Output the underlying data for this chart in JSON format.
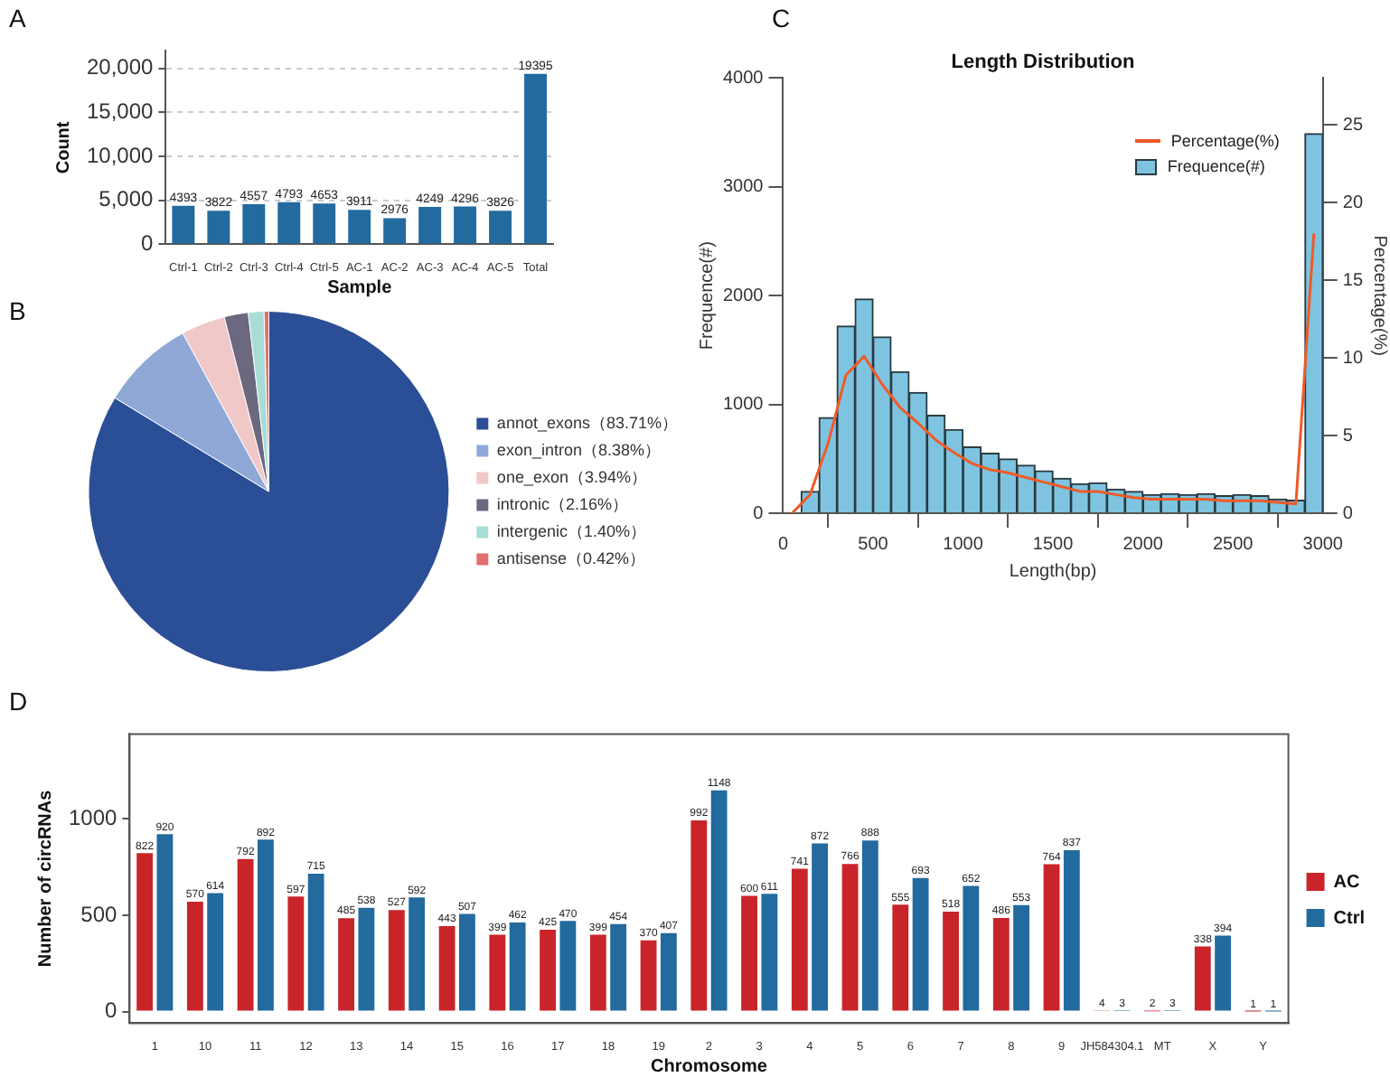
{
  "chart_data": [
    {
      "type": "bar",
      "xlabel": "Sample",
      "ylabel": "Count",
      "annotations": [
        "A"
      ],
      "categories": [
        "Ctrl-1",
        "Ctrl-2",
        "Ctrl-3",
        "Ctrl-4",
        "Ctrl-5",
        "AC-1",
        "AC-2",
        "AC-3",
        "AC-4",
        "AC-5",
        "Total"
      ],
      "values": [
        4393,
        3822,
        4557,
        4793,
        4653,
        3911,
        2976,
        4249,
        4296,
        3826,
        19395
      ],
      "color": "#236a9e",
      "ylim": [
        0,
        22000
      ],
      "yticks": [
        0,
        {
          "value": 5000,
          "label": "5,000"
        },
        {
          "value": 10000,
          "label": "10,000"
        },
        {
          "value": 15000,
          "label": "15,000"
        },
        {
          "value": 20000,
          "label": "20,000"
        }
      ],
      "grid": "y",
      "data_labels": true
    },
    {
      "type": "pie",
      "annotations": [
        "B"
      ],
      "categories": [
        "annot_exons（83.71%）",
        "exon_intron（8.38%）",
        "one_exon（3.94%）",
        "intronic（2.16%）",
        "intergenic（1.40%）",
        "antisense（0.42%）"
      ],
      "values": [
        83.71,
        8.38,
        3.94,
        2.16,
        1.4,
        0.42
      ],
      "colors": [
        "#2b4f96",
        "#8fa8d6",
        "#f0c8c8",
        "#6b6880",
        "#a8dcd6",
        "#e07070"
      ],
      "legend": "right"
    },
    {
      "type": "histogram",
      "title": "Length Distribution",
      "xlabel": "Length(bp)",
      "ylabel": "Frequence(#)",
      "y2label": "Percentage(%)",
      "annotations": [
        "C"
      ],
      "series": [
        {
          "type": "line",
          "name": "Percentage(%)",
          "color": "#f05a28",
          "axis": "y2",
          "x": [
            50,
            150,
            250,
            350,
            450,
            550,
            650,
            750,
            850,
            950,
            1050,
            1150,
            1250,
            1350,
            1450,
            1550,
            1650,
            1750,
            1850,
            1950,
            2050,
            2150,
            2250,
            2350,
            2450,
            2550,
            2650,
            2750,
            2850,
            2950
          ],
          "values": [
            0,
            1.2,
            4.5,
            8.9,
            10.1,
            8.3,
            6.8,
            5.8,
            4.7,
            3.9,
            3.2,
            2.8,
            2.6,
            2.3,
            2.0,
            1.7,
            1.4,
            1.4,
            1.2,
            1.0,
            0.9,
            0.9,
            0.9,
            0.9,
            0.8,
            0.8,
            0.8,
            0.7,
            0.6,
            18
          ]
        },
        {
          "type": "histogram",
          "name": "Frequence(#)",
          "color": "#7ec4e0",
          "bins": [
            0,
            100,
            200,
            300,
            400,
            500,
            600,
            700,
            800,
            900,
            1000,
            1100,
            1200,
            1300,
            1400,
            1500,
            1600,
            1700,
            1800,
            1900,
            2000,
            2100,
            2200,
            2300,
            2400,
            2500,
            2600,
            2700,
            2800,
            2900,
            3000
          ],
          "values": [
            null,
            200,
            880,
            1720,
            1970,
            1620,
            1300,
            1110,
            900,
            770,
            610,
            550,
            500,
            440,
            390,
            320,
            270,
            280,
            220,
            200,
            170,
            180,
            170,
            180,
            160,
            170,
            160,
            130,
            120,
            3490
          ]
        }
      ],
      "xlim": [
        0,
        3000
      ],
      "xticks": [
        0,
        500,
        1000,
        1500,
        2000,
        2500,
        3000
      ],
      "ylim": [
        0,
        4000
      ],
      "yticks": [
        0,
        1000,
        2000,
        3000,
        4000
      ],
      "y2lim": [
        0,
        28
      ],
      "y2ticks": [
        0,
        5,
        10,
        15,
        20,
        25
      ],
      "legend": "top right",
      "marker": "none",
      "grid": false
    },
    {
      "type": "bar",
      "xlabel": "Chromosome",
      "ylabel": "Number of circRNAs",
      "annotations": [
        "D"
      ],
      "categories": [
        "1",
        "10",
        "11",
        "12",
        "13",
        "14",
        "15",
        "16",
        "17",
        "18",
        "19",
        "2",
        "3",
        "4",
        "5",
        "6",
        "7",
        "8",
        "9",
        "JH584304.1",
        "MT",
        "X",
        "Y"
      ],
      "series": [
        {
          "name": "AC",
          "color": "#c8242a",
          "values": [
            822,
            570,
            792,
            597,
            485,
            527,
            443,
            399,
            425,
            399,
            370,
            992,
            600,
            741,
            766,
            555,
            518,
            486,
            764,
            4,
            2,
            338,
            1
          ]
        },
        {
          "name": "Ctrl",
          "color": "#236a9e",
          "values": [
            920,
            614,
            892,
            715,
            538,
            592,
            507,
            462,
            470,
            454,
            407,
            1148,
            611,
            872,
            888,
            693,
            652,
            553,
            837,
            3,
            3,
            394,
            1
          ]
        }
      ],
      "ylim": [
        -60,
        1440
      ],
      "yticks": [
        0,
        500,
        1000
      ],
      "grid": false,
      "legend": "right",
      "data_labels": true
    }
  ]
}
